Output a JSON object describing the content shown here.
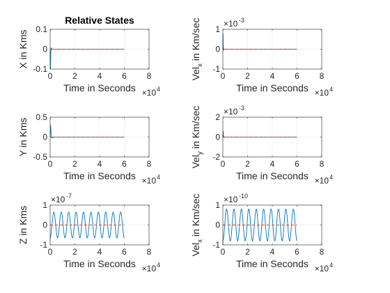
{
  "chart_data": [
    {
      "type": "line",
      "title": "Relative States",
      "xlabel": "Time in Seconds",
      "x_multiplier": "×10",
      "x_multiplier_exp": "4",
      "ylabel": "X in Kms",
      "y_multiplier": "",
      "y_multiplier_exp": "",
      "xlim": [
        0,
        8
      ],
      "ylim": [
        -0.1,
        0.1
      ],
      "x_ticks": [
        "0",
        "2",
        "4",
        "6",
        "8"
      ],
      "y_ticks": [
        "-0.1",
        "0",
        "0.1"
      ],
      "y_tick_values": [
        -0.1,
        0,
        0.1
      ],
      "dashed_zero_to": 6,
      "signal": {
        "kind": "transient",
        "end": 6,
        "impulse_at": 0.05,
        "impulse_value": -0.1
      },
      "series_colors": [
        "#0072BD",
        "#D95319"
      ]
    },
    {
      "type": "line",
      "title": "",
      "xlabel": "Time in Seconds",
      "x_multiplier": "×10",
      "x_multiplier_exp": "4",
      "ylabel": "Vel",
      "ylabel_sub": "x",
      "ylabel_rest": " in Km/sec",
      "y_multiplier": "×10",
      "y_multiplier_exp": "-3",
      "xlim": [
        0,
        8
      ],
      "ylim": [
        -1,
        1
      ],
      "x_ticks": [
        "0",
        "2",
        "4",
        "6",
        "8"
      ],
      "y_ticks": [
        "-1",
        "0",
        "1"
      ],
      "y_tick_values": [
        -1,
        0,
        1
      ],
      "dashed_zero_to": 6,
      "signal": {
        "kind": "transient",
        "end": 6,
        "impulse_at": 0.03,
        "impulse_value": 0.8
      },
      "series_colors": [
        "#0072BD",
        "#D95319"
      ]
    },
    {
      "type": "line",
      "title": "",
      "xlabel": "Time in Seconds",
      "x_multiplier": "×10",
      "x_multiplier_exp": "4",
      "ylabel": "Y in Kms",
      "y_multiplier": "",
      "y_multiplier_exp": "",
      "xlim": [
        0,
        8
      ],
      "ylim": [
        -0.5,
        0.5
      ],
      "x_ticks": [
        "0",
        "2",
        "4",
        "6",
        "8"
      ],
      "y_ticks": [
        "-0.5",
        "0",
        "0.5"
      ],
      "y_tick_values": [
        -0.5,
        0,
        0.5
      ],
      "dashed_zero_to": 6,
      "signal": {
        "kind": "transient",
        "end": 6,
        "impulse_at": 0.08,
        "impulse_value": 0.3
      },
      "series_colors": [
        "#0072BD",
        "#D95319"
      ]
    },
    {
      "type": "line",
      "title": "",
      "xlabel": "Time in Seconds",
      "x_multiplier": "×10",
      "x_multiplier_exp": "4",
      "ylabel": "Vel",
      "ylabel_sub": "y",
      "ylabel_rest": " in Km/sec",
      "y_multiplier": "×10",
      "y_multiplier_exp": "-3",
      "xlim": [
        0,
        8
      ],
      "ylim": [
        -2,
        2
      ],
      "x_ticks": [
        "0",
        "2",
        "4",
        "6",
        "8"
      ],
      "y_ticks": [
        "-2",
        "0",
        "2"
      ],
      "y_tick_values": [
        -2,
        0,
        2
      ],
      "dashed_zero_to": 6,
      "signal": {
        "kind": "transient",
        "end": 6,
        "impulse_at": 0.05,
        "impulse_value": 0.6
      },
      "series_colors": [
        "#0072BD",
        "#D95319"
      ]
    },
    {
      "type": "line",
      "title": "",
      "xlabel": "Time in Seconds",
      "x_multiplier": "×10",
      "x_multiplier_exp": "4",
      "ylabel": "Z in Kms",
      "y_multiplier": "×10",
      "y_multiplier_exp": "-7",
      "xlim": [
        0,
        8
      ],
      "ylim": [
        -1,
        1
      ],
      "x_ticks": [
        "0",
        "2",
        "4",
        "6",
        "8"
      ],
      "y_ticks": [
        "-1",
        "0",
        "1"
      ],
      "y_tick_values": [
        -1,
        0,
        1
      ],
      "dashed_zero_to": 6,
      "signal": {
        "kind": "sine",
        "end": 6,
        "amplitude": 0.65,
        "cycles": 10,
        "start_value": -0.7
      },
      "series_colors": [
        "#0072BD",
        "#D95319"
      ]
    },
    {
      "type": "line",
      "title": "",
      "xlabel": "Time in Seconds",
      "x_multiplier": "×10",
      "x_multiplier_exp": "4",
      "ylabel": "Vel",
      "ylabel_sub": "x",
      "ylabel_rest": " in Km/sec",
      "y_multiplier": "×10",
      "y_multiplier_exp": "-10",
      "xlim": [
        0,
        8
      ],
      "ylim": [
        -1,
        1
      ],
      "x_ticks": [
        "0",
        "2",
        "4",
        "6",
        "8"
      ],
      "y_ticks": [
        "-1",
        "0",
        "1"
      ],
      "y_tick_values": [
        -1,
        0,
        1
      ],
      "dashed_zero_to": 6,
      "signal": {
        "kind": "sine",
        "end": 6,
        "amplitude": 0.8,
        "cycles": 10,
        "start_value": -0.95
      },
      "series_colors": [
        "#0072BD",
        "#D95319"
      ]
    }
  ]
}
